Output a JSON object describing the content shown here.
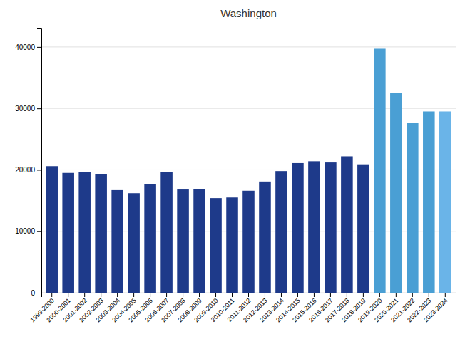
{
  "chart_data": {
    "type": "bar",
    "title": "Washington",
    "categories": [
      "1999-2000",
      "2000-2001",
      "2001-2002",
      "2002-2003",
      "2003-2004",
      "2004-2005",
      "2005-2006",
      "2006-2007",
      "2007-2008",
      "2008-2009",
      "2009-2010",
      "2010-2011",
      "2011-2012",
      "2012-2013",
      "2013-2014",
      "2014-2015",
      "2015-2016",
      "2016-2017",
      "2017-2018",
      "2018-2019",
      "2019-2020",
      "2020-2021",
      "2021-2022",
      "2022-2023",
      "2023-2024"
    ],
    "values": [
      20600,
      19500,
      19600,
      19300,
      16700,
      16200,
      17700,
      19700,
      16800,
      16900,
      15400,
      15500,
      16600,
      18100,
      19800,
      21100,
      21400,
      21200,
      22200,
      20900,
      39700,
      32500,
      27700,
      29500,
      29500
    ],
    "colors": [
      "#1e3a8a",
      "#1e3a8a",
      "#1e3a8a",
      "#1e3a8a",
      "#1e3a8a",
      "#1e3a8a",
      "#1e3a8a",
      "#1e3a8a",
      "#1e3a8a",
      "#1e3a8a",
      "#1e3a8a",
      "#1e3a8a",
      "#1e3a8a",
      "#1e3a8a",
      "#1e3a8a",
      "#1e3a8a",
      "#1e3a8a",
      "#1e3a8a",
      "#1e3a8a",
      "#1e3a8a",
      "#4a9fd4",
      "#4a9fd4",
      "#4a9fd4",
      "#4a9fd4",
      "#6ab4e8"
    ],
    "ylim": [
      0,
      43000
    ],
    "yticks": [
      0,
      10000,
      20000,
      30000,
      40000
    ],
    "grid": true
  }
}
